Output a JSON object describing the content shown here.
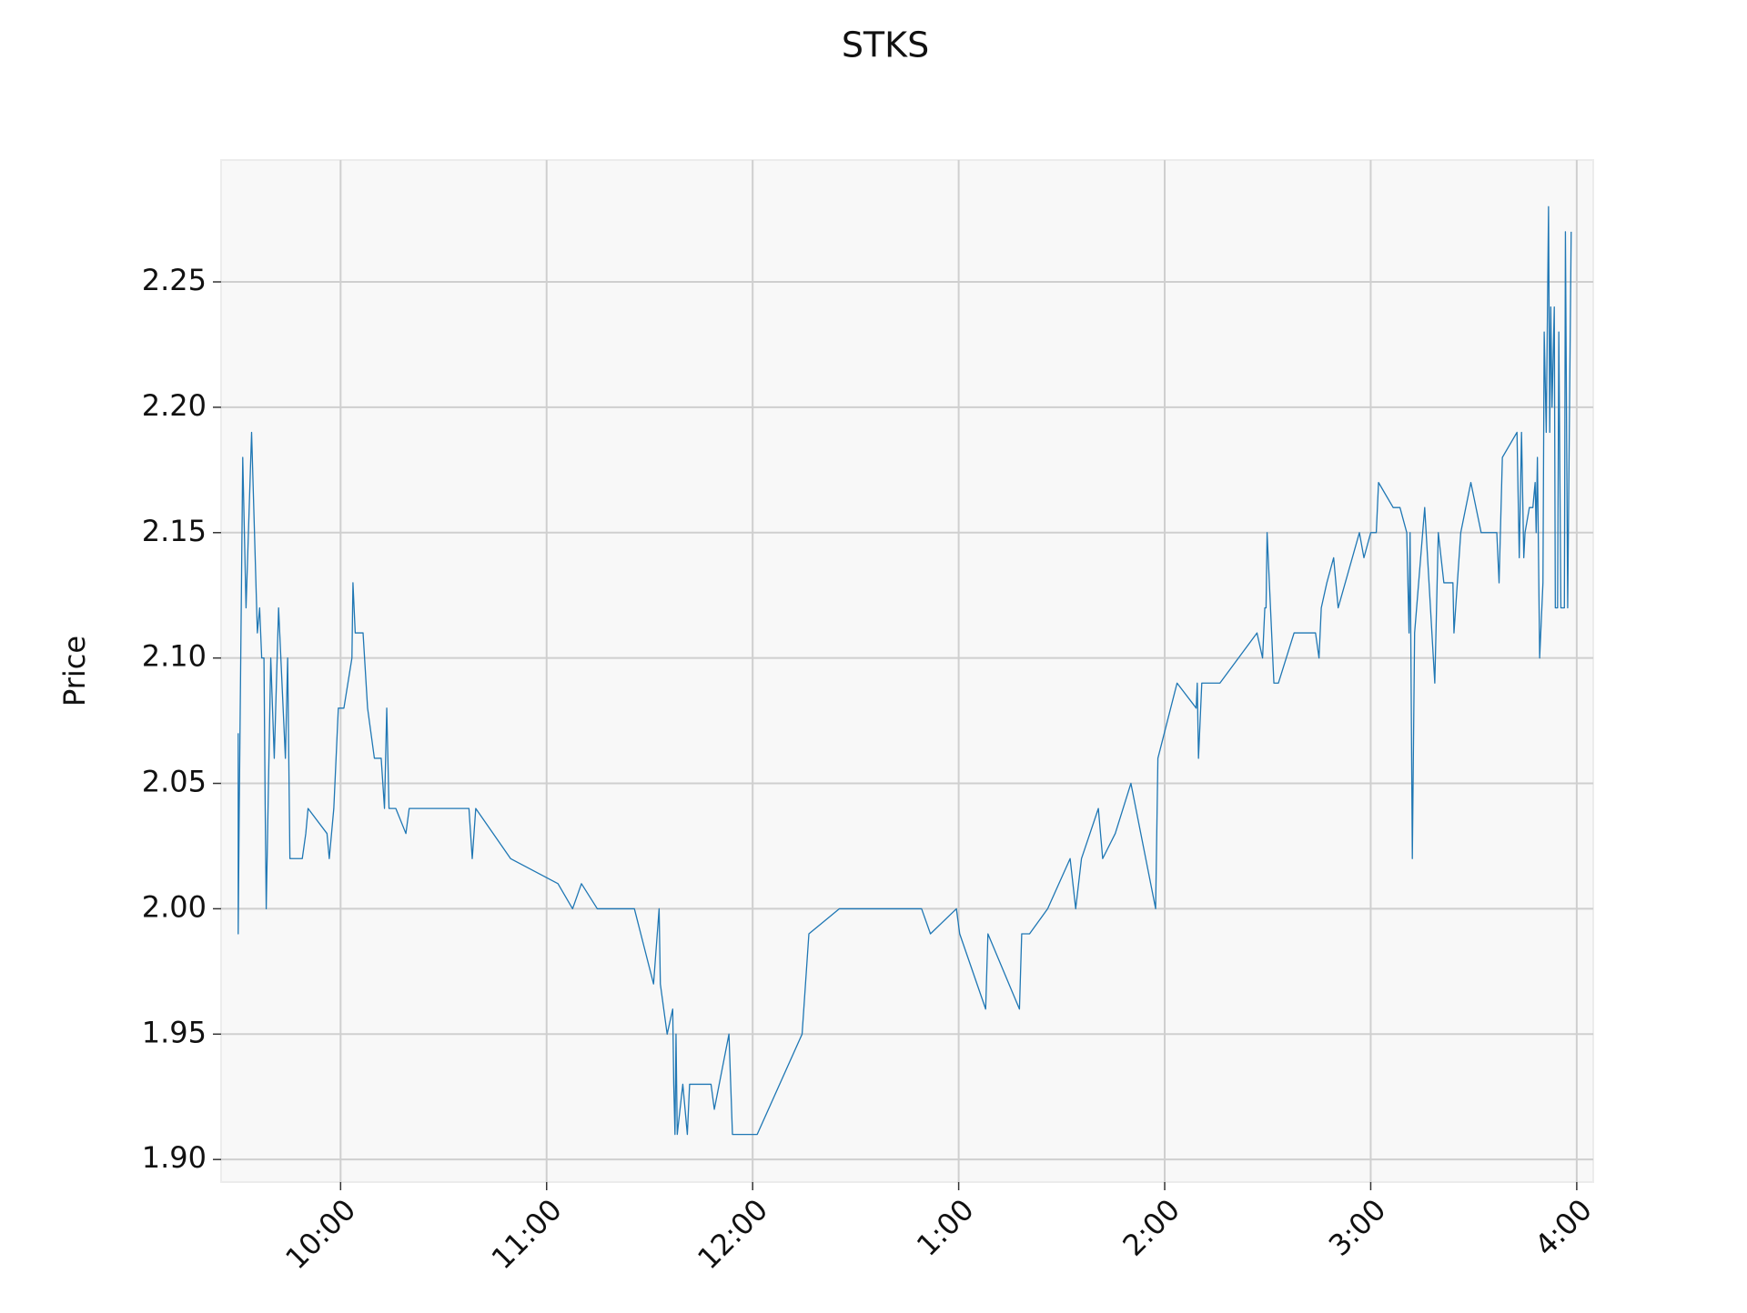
{
  "chart_data": {
    "type": "line",
    "title": "STKS",
    "ylabel": "Price",
    "color": "#1f77b4",
    "grid": true,
    "xlim": [
      9.42,
      16.08
    ],
    "ylim": [
      1.891,
      2.2986
    ],
    "xticks": [
      {
        "value": 10,
        "label": "10:00"
      },
      {
        "value": 11,
        "label": "11:00"
      },
      {
        "value": 12,
        "label": "12:00"
      },
      {
        "value": 13,
        "label": "1:00"
      },
      {
        "value": 14,
        "label": "2:00"
      },
      {
        "value": 15,
        "label": "3:00"
      },
      {
        "value": 16,
        "label": "4:00"
      }
    ],
    "yticks": [
      {
        "value": 1.9,
        "label": "1.90"
      },
      1.95,
      {
        "value": 2.0,
        "label": "2.00"
      },
      2.05,
      {
        "value": 2.1,
        "label": "2.10"
      },
      2.15,
      {
        "value": 2.2,
        "label": "2.20"
      },
      2.25
    ],
    "x": [
      9.503,
      9.503,
      9.508,
      9.525,
      9.541,
      9.568,
      9.596,
      9.607,
      9.617,
      9.628,
      9.634,
      9.639,
      9.661,
      9.678,
      9.699,
      9.732,
      9.743,
      9.754,
      9.814,
      9.831,
      9.842,
      9.934,
      9.945,
      9.967,
      9.989,
      10.016,
      10.055,
      10.06,
      10.071,
      10.109,
      10.131,
      10.164,
      10.197,
      10.213,
      10.224,
      10.235,
      10.268,
      10.317,
      10.333,
      10.623,
      10.639,
      10.656,
      10.825,
      11.055,
      11.126,
      11.169,
      11.246,
      11.426,
      11.519,
      11.546,
      11.552,
      11.585,
      11.612,
      11.617,
      11.623,
      11.628,
      11.634,
      11.661,
      11.683,
      11.694,
      11.798,
      11.814,
      11.885,
      11.902,
      12.022,
      12.24,
      12.273,
      12.421,
      12.82,
      12.863,
      12.989,
      13.005,
      13.131,
      13.142,
      13.295,
      13.306,
      13.344,
      13.432,
      13.541,
      13.568,
      13.596,
      13.678,
      13.699,
      13.76,
      13.836,
      13.956,
      13.967,
      14.06,
      14.153,
      14.158,
      14.164,
      14.18,
      14.268,
      14.448,
      14.475,
      14.486,
      14.492,
      14.497,
      14.53,
      14.552,
      14.628,
      14.732,
      14.749,
      14.76,
      14.787,
      14.82,
      14.842,
      14.945,
      14.967,
      15.0,
      15.027,
      15.038,
      15.109,
      15.142,
      15.175,
      15.186,
      15.191,
      15.202,
      15.213,
      15.262,
      15.311,
      15.328,
      15.355,
      15.399,
      15.404,
      15.437,
      15.486,
      15.536,
      15.612,
      15.623,
      15.639,
      15.71,
      15.721,
      15.732,
      15.743,
      15.749,
      15.77,
      15.787,
      15.798,
      15.803,
      15.809,
      15.82,
      15.836,
      15.842,
      15.852,
      15.863,
      15.869,
      15.874,
      15.88,
      15.891,
      15.896,
      15.907,
      15.913,
      15.923,
      15.94,
      15.945,
      15.956,
      15.973
    ],
    "values": [
      2.07,
      1.99,
      2.04,
      2.18,
      2.12,
      2.19,
      2.11,
      2.12,
      2.1,
      2.1,
      2.04,
      2.0,
      2.1,
      2.06,
      2.12,
      2.06,
      2.1,
      2.02,
      2.02,
      2.03,
      2.04,
      2.03,
      2.02,
      2.04,
      2.08,
      2.08,
      2.1,
      2.13,
      2.11,
      2.11,
      2.08,
      2.06,
      2.06,
      2.04,
      2.08,
      2.04,
      2.04,
      2.03,
      2.04,
      2.04,
      2.02,
      2.04,
      2.02,
      2.01,
      2.0,
      2.01,
      2.0,
      2.0,
      1.97,
      2.0,
      1.97,
      1.95,
      1.96,
      1.93,
      1.91,
      1.95,
      1.91,
      1.93,
      1.91,
      1.93,
      1.93,
      1.92,
      1.95,
      1.91,
      1.91,
      1.95,
      1.99,
      2.0,
      2.0,
      1.99,
      2.0,
      1.99,
      1.96,
      1.99,
      1.96,
      1.99,
      1.99,
      2.0,
      2.02,
      2.0,
      2.02,
      2.04,
      2.02,
      2.03,
      2.05,
      2.0,
      2.06,
      2.09,
      2.08,
      2.09,
      2.06,
      2.09,
      2.09,
      2.11,
      2.1,
      2.12,
      2.12,
      2.15,
      2.09,
      2.09,
      2.11,
      2.11,
      2.1,
      2.12,
      2.13,
      2.14,
      2.12,
      2.15,
      2.14,
      2.15,
      2.15,
      2.17,
      2.16,
      2.16,
      2.15,
      2.11,
      2.15,
      2.02,
      2.11,
      2.16,
      2.09,
      2.15,
      2.13,
      2.13,
      2.11,
      2.15,
      2.17,
      2.15,
      2.15,
      2.13,
      2.18,
      2.19,
      2.14,
      2.19,
      2.14,
      2.15,
      2.16,
      2.16,
      2.17,
      2.15,
      2.18,
      2.1,
      2.13,
      2.23,
      2.19,
      2.28,
      2.19,
      2.24,
      2.2,
      2.24,
      2.12,
      2.12,
      2.23,
      2.12,
      2.12,
      2.27,
      2.12,
      2.27
    ]
  }
}
